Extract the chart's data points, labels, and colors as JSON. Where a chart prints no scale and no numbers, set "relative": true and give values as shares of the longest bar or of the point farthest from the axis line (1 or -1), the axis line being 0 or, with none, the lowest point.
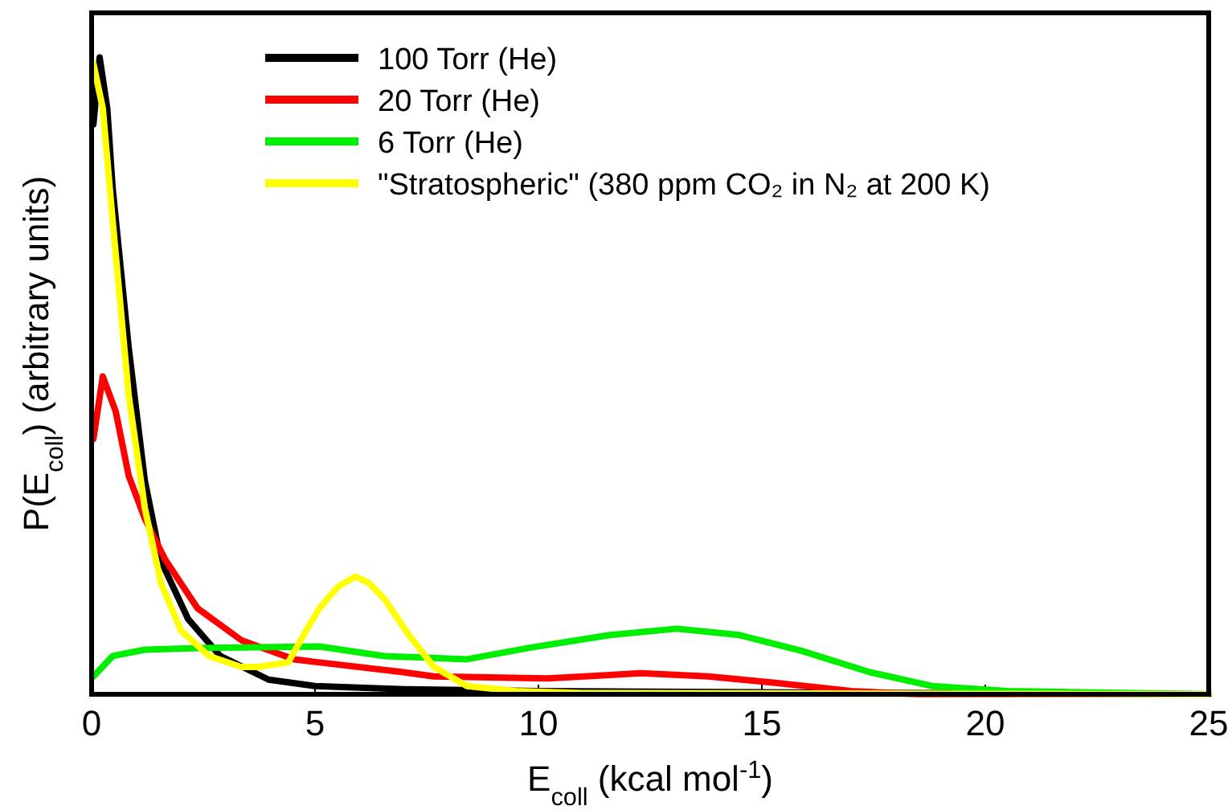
{
  "chart_data": {
    "type": "line",
    "relative": true,
    "xlabel": "E$_{coll}$ (kcal mol$^{-1}$)",
    "ylabel": "P(E$_{coll}$) (arbitrary units)",
    "xlim": [
      0,
      25
    ],
    "xticks": [
      0,
      5,
      10,
      15,
      20,
      25
    ],
    "legend": "top right",
    "grid": false,
    "line_style": "solid",
    "marker": "none",
    "series": [
      {
        "name": "100 Torr (He)",
        "color": "#000000",
        "x": [
          0.04,
          0.18,
          0.35,
          0.47,
          0.83,
          1.19,
          1.55,
          2.16,
          2.88,
          3.96,
          5,
          7,
          10,
          15,
          25
        ],
        "values": [
          0.895,
          1.0,
          0.92,
          0.795,
          0.544,
          0.336,
          0.21,
          0.118,
          0.06,
          0.023,
          0.013,
          0.008,
          0.005,
          0.003,
          0
        ]
      },
      {
        "name": "20 Torr (He)",
        "color": "#ff0000",
        "x": [
          0.04,
          0.25,
          0.54,
          0.83,
          1.19,
          1.65,
          2.37,
          3.35,
          4.53,
          5.1,
          6.94,
          7.66,
          10.2,
          12.3,
          13.8,
          15.3,
          17,
          18.5,
          25
        ],
        "values": [
          0.401,
          0.499,
          0.444,
          0.343,
          0.276,
          0.211,
          0.135,
          0.085,
          0.055,
          0.05,
          0.035,
          0.028,
          0.025,
          0.033,
          0.028,
          0.018,
          0.005,
          0,
          0
        ]
      },
      {
        "name": "6 Torr (He)",
        "color": "#00ee00",
        "x": [
          0.04,
          0.47,
          1.19,
          2.63,
          5.1,
          6.55,
          8.4,
          9.8,
          11.6,
          13.1,
          14.5,
          15.9,
          17.4,
          18.8,
          20.5,
          25
        ],
        "values": [
          0.028,
          0.06,
          0.07,
          0.073,
          0.075,
          0.06,
          0.055,
          0.073,
          0.093,
          0.103,
          0.093,
          0.068,
          0.035,
          0.013,
          0.005,
          0
        ]
      },
      {
        "name": "\"Stratospheric\" (380 ppm CO₂ in N₂ at 200 K)",
        "color": "#ffff00",
        "x": [
          0.04,
          0.25,
          0.47,
          0.83,
          1.19,
          1.55,
          2.0,
          2.63,
          3.35,
          3.7,
          4.4,
          4.8,
          5.1,
          5.5,
          5.9,
          6.2,
          6.55,
          7.1,
          7.66,
          8.4,
          9.5,
          11,
          25
        ],
        "values": [
          0.99,
          0.92,
          0.744,
          0.469,
          0.293,
          0.175,
          0.1,
          0.06,
          0.043,
          0.043,
          0.05,
          0.1,
          0.135,
          0.168,
          0.185,
          0.175,
          0.15,
          0.093,
          0.043,
          0.013,
          0.005,
          0.002,
          0
        ]
      }
    ]
  }
}
